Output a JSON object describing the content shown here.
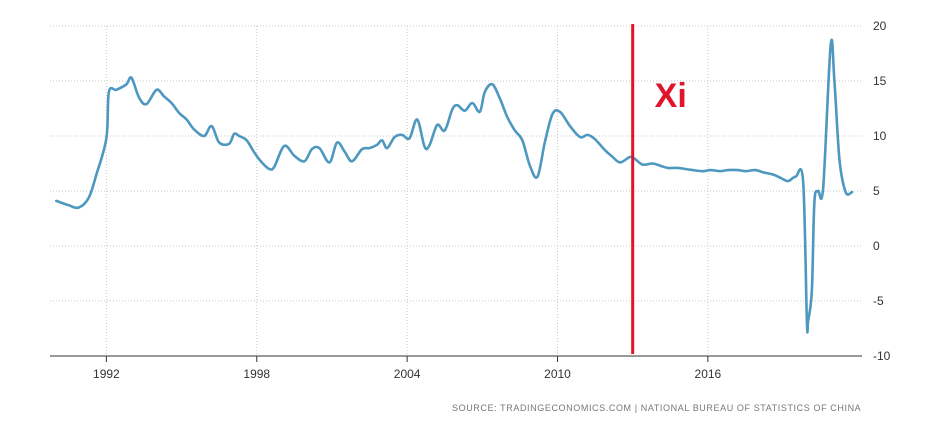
{
  "chart_data": {
    "type": "line",
    "title": "",
    "xlabel": "",
    "ylabel": "",
    "xlim": [
      1989.75,
      2022.15
    ],
    "ylim": [
      -10,
      20
    ],
    "x_ticks": [
      1992,
      1998,
      2004,
      2010,
      2016
    ],
    "x_tick_labels": [
      "1992",
      "1998",
      "2004",
      "2010",
      "2016"
    ],
    "y_ticks": [
      20,
      15,
      10,
      5,
      0,
      -5,
      -10
    ],
    "y_tick_labels": [
      "20",
      "15",
      "10",
      "5",
      "0",
      "-5",
      "-10"
    ],
    "grid": true,
    "legend": "none",
    "colors": {
      "line": "#4e98c0",
      "annotation": "#e0152b",
      "grid": "#c8c8c8",
      "axis": "#333333"
    },
    "annotation": {
      "label": "Xi",
      "x": 2013.0
    },
    "series": [
      {
        "x": [
          1990.0,
          1990.5,
          1990.9,
          1991.3,
          1991.6,
          1992.0,
          1992.1,
          1992.4,
          1992.8,
          1993.0,
          1993.3,
          1993.6,
          1994.0,
          1994.3,
          1994.6,
          1994.9,
          1995.2,
          1995.5,
          1995.9,
          1996.2,
          1996.5,
          1996.9,
          1997.1,
          1997.3,
          1997.6,
          1997.9,
          1998.2,
          1998.5,
          1998.7,
          1999.1,
          1999.5,
          1999.9,
          2000.2,
          2000.5,
          2000.9,
          2001.2,
          2001.5,
          2001.8,
          2002.2,
          2002.5,
          2002.8,
          2003.0,
          2003.2,
          2003.5,
          2003.8,
          2004.1,
          2004.4,
          2004.7,
          2004.9,
          2005.2,
          2005.5,
          2005.8,
          2006.0,
          2006.3,
          2006.6,
          2006.9,
          2007.1,
          2007.4,
          2007.7,
          2008.0,
          2008.3,
          2008.6,
          2008.9,
          2009.2,
          2009.5,
          2009.8,
          2010.1,
          2010.5,
          2010.9,
          2011.2,
          2011.5,
          2011.9,
          2012.2,
          2012.5,
          2012.9,
          2013.1,
          2013.4,
          2013.8,
          2014.1,
          2014.4,
          2014.8,
          2015.1,
          2015.4,
          2015.8,
          2016.1,
          2016.5,
          2016.8,
          2017.2,
          2017.5,
          2017.9,
          2018.2,
          2018.6,
          2018.9,
          2019.2,
          2019.5,
          2019.8,
          2019.95,
          2020.0,
          2020.15,
          2020.25,
          2020.4,
          2020.6,
          2020.9,
          2021.05,
          2021.25,
          2021.5,
          2021.75
        ],
        "y": [
          4.1,
          3.7,
          3.5,
          4.4,
          6.5,
          9.8,
          14.0,
          14.2,
          14.7,
          15.3,
          13.5,
          12.9,
          14.2,
          13.6,
          13.0,
          12.1,
          11.5,
          10.6,
          10.0,
          10.9,
          9.4,
          9.3,
          10.2,
          10.0,
          9.6,
          8.5,
          7.6,
          7.0,
          7.2,
          9.1,
          8.2,
          7.7,
          8.8,
          8.9,
          7.6,
          9.4,
          8.6,
          7.7,
          8.8,
          8.9,
          9.2,
          9.6,
          8.9,
          9.9,
          10.1,
          9.8,
          11.5,
          9.0,
          9.2,
          11.0,
          10.5,
          12.4,
          12.8,
          12.3,
          13.0,
          12.2,
          14.0,
          14.7,
          13.4,
          11.7,
          10.5,
          9.6,
          7.3,
          6.3,
          9.5,
          12.0,
          12.2,
          10.9,
          9.9,
          10.1,
          9.7,
          8.7,
          8.1,
          7.6,
          8.1,
          7.9,
          7.4,
          7.5,
          7.3,
          7.1,
          7.1,
          7.0,
          6.9,
          6.8,
          6.9,
          6.8,
          6.9,
          6.9,
          6.8,
          6.9,
          6.7,
          6.5,
          6.2,
          5.9,
          6.3,
          5.9,
          -6.8,
          -6.8,
          -4.0,
          4.0,
          5.0,
          5.3,
          18.3,
          15.0,
          7.9,
          4.9,
          4.9
        ]
      }
    ]
  },
  "source": "SOURCE: TRADINGECONOMICS.COM | NATIONAL BUREAU OF STATISTICS OF CHINA"
}
